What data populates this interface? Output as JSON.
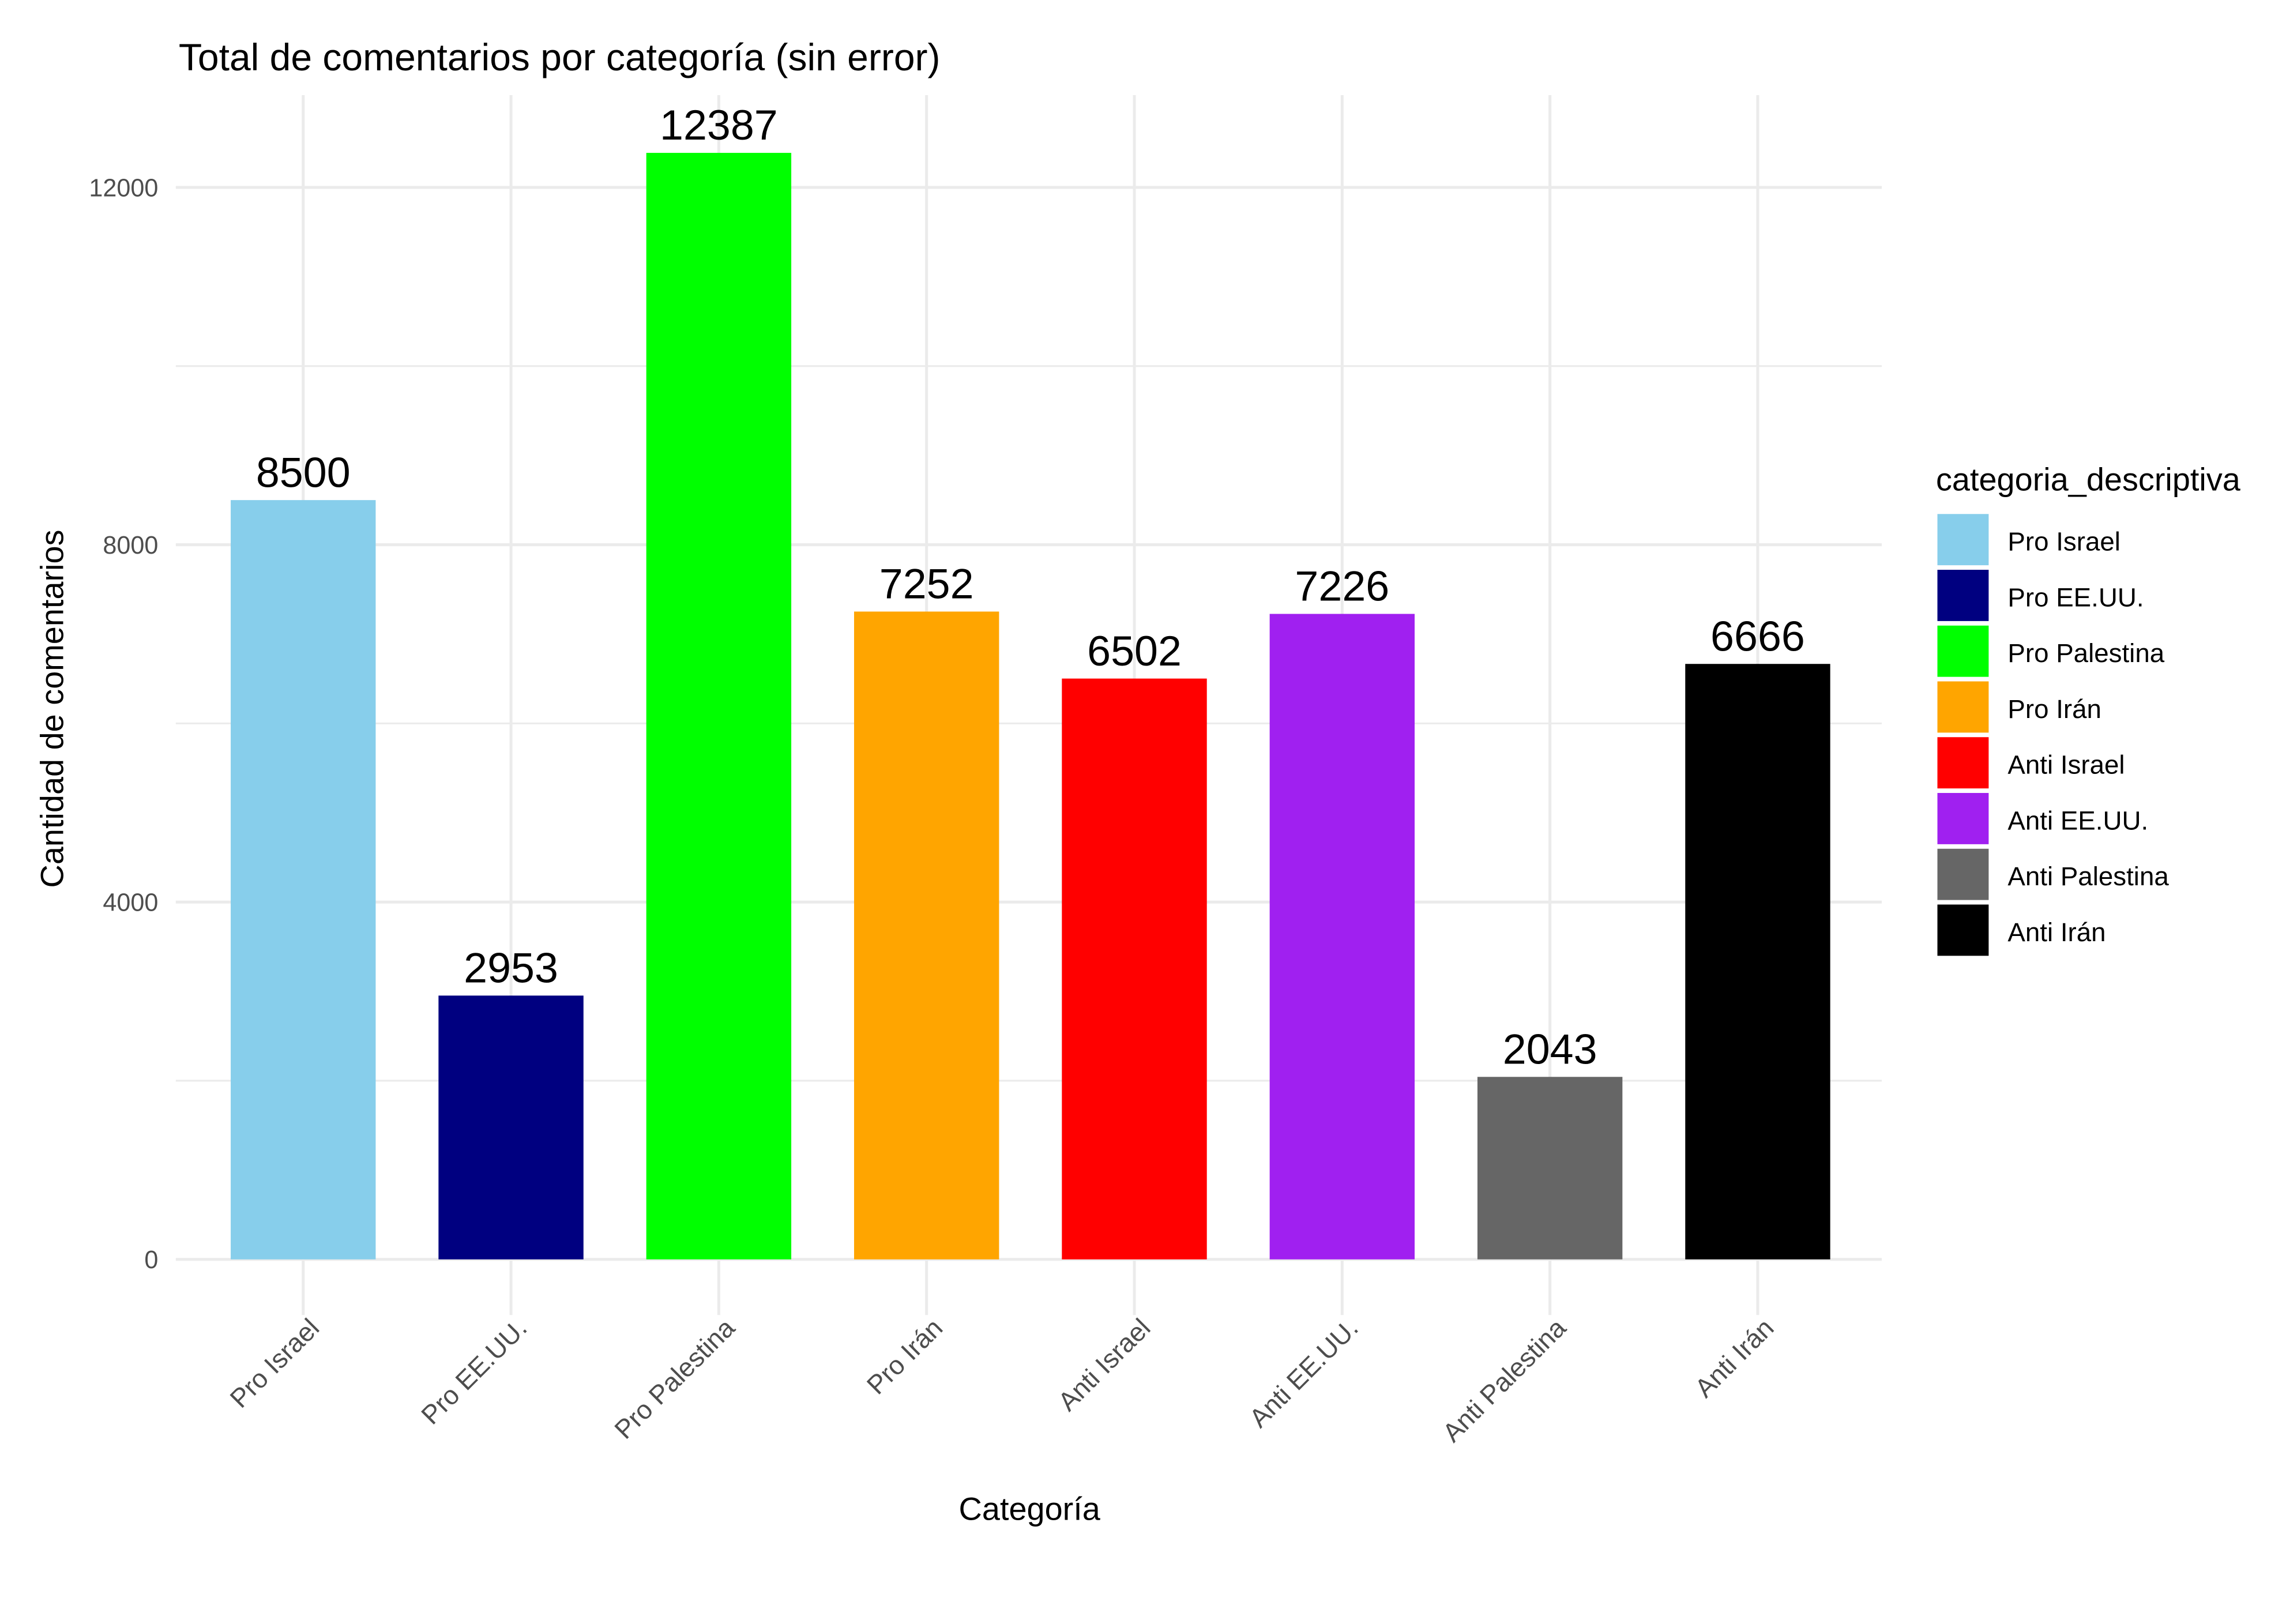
{
  "chart_data": {
    "type": "bar",
    "title": "Total de comentarios por categoría (sin error)",
    "xlabel": "Categoría",
    "ylabel": "Cantidad de comentarios",
    "categories": [
      "Pro Israel",
      "Pro EE.UU.",
      "Pro Palestina",
      "Pro Irán",
      "Anti Israel",
      "Anti EE.UU.",
      "Anti Palestina",
      "Anti Irán"
    ],
    "values": [
      8500,
      2953,
      12387,
      7252,
      6502,
      7226,
      2043,
      6666
    ],
    "colors": [
      "#87CEEB",
      "#000080",
      "#00FF00",
      "#FFA500",
      "#FF0000",
      "#A020F0",
      "#666666",
      "#000000"
    ],
    "ylim": [
      0,
      12800
    ],
    "yticks": [
      0,
      4000,
      8000,
      12000
    ],
    "yticks_minor": [
      2000,
      6000,
      10000
    ],
    "grid": true,
    "legend": {
      "title": "categoria_descriptiva",
      "placement": "right",
      "entries": [
        "Pro Israel",
        "Pro EE.UU.",
        "Pro Palestina",
        "Pro Irán",
        "Anti Israel",
        "Anti EE.UU.",
        "Anti Palestina",
        "Anti Irán"
      ]
    }
  }
}
